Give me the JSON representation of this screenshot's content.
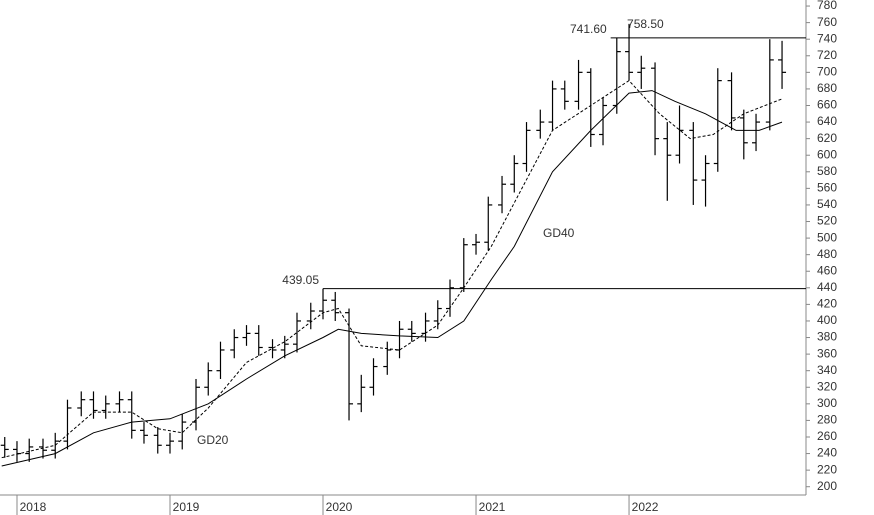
{
  "chart_data": {
    "type": "ohlc",
    "color": "#000000",
    "xlim": [
      2017.889,
      2023.15
    ],
    "xticks": [
      2018,
      2019,
      2020,
      2021,
      2022
    ],
    "ylim": [
      190,
      785
    ],
    "yticks": [
      200,
      220,
      240,
      260,
      280,
      300,
      320,
      340,
      360,
      380,
      400,
      420,
      440,
      460,
      480,
      500,
      520,
      540,
      560,
      580,
      600,
      620,
      640,
      660,
      680,
      700,
      720,
      740,
      760,
      780
    ],
    "x": [
      2017.92,
      2018.0,
      2018.08,
      2018.17,
      2018.25,
      2018.33,
      2018.42,
      2018.5,
      2018.58,
      2018.67,
      2018.75,
      2018.83,
      2018.92,
      2019.0,
      2019.08,
      2019.17,
      2019.25,
      2019.33,
      2019.42,
      2019.5,
      2019.58,
      2019.67,
      2019.75,
      2019.83,
      2019.92,
      2020.0,
      2020.08,
      2020.17,
      2020.25,
      2020.33,
      2020.42,
      2020.5,
      2020.58,
      2020.67,
      2020.75,
      2020.83,
      2020.92,
      2021.0,
      2021.08,
      2021.17,
      2021.25,
      2021.33,
      2021.42,
      2021.5,
      2021.58,
      2021.67,
      2021.75,
      2021.83,
      2021.92,
      2022.0,
      2022.08,
      2022.17,
      2022.25,
      2022.33,
      2022.42,
      2022.5,
      2022.58,
      2022.67,
      2022.75,
      2022.83,
      2022.92,
      2023.0
    ],
    "open": [
      250,
      245,
      240,
      248,
      244,
      255,
      295,
      305,
      292,
      300,
      305,
      268,
      262,
      250,
      255,
      278,
      320,
      340,
      365,
      380,
      385,
      368,
      365,
      372,
      400,
      412,
      425,
      410,
      300,
      320,
      345,
      365,
      390,
      385,
      400,
      415,
      440,
      492,
      495,
      540,
      565,
      590,
      630,
      640,
      680,
      665,
      700,
      625,
      660,
      725,
      700,
      705,
      620,
      600,
      630,
      570,
      590,
      690,
      645,
      615,
      640,
      715
    ],
    "high": [
      260,
      255,
      258,
      258,
      265,
      305,
      315,
      315,
      310,
      315,
      315,
      278,
      272,
      265,
      288,
      330,
      350,
      375,
      390,
      395,
      395,
      378,
      382,
      410,
      422,
      439.05,
      435,
      415,
      335,
      355,
      375,
      400,
      400,
      410,
      425,
      450,
      500,
      505,
      550,
      575,
      600,
      640,
      655,
      690,
      690,
      715,
      705,
      670,
      741.6,
      758.5,
      720,
      712,
      640,
      660,
      640,
      600,
      705,
      700,
      655,
      650,
      740,
      738
    ],
    "low": [
      235,
      230,
      230,
      234,
      234,
      245,
      285,
      282,
      282,
      290,
      258,
      252,
      240,
      240,
      245,
      268,
      310,
      330,
      355,
      370,
      358,
      355,
      355,
      362,
      390,
      402,
      400,
      280,
      290,
      310,
      335,
      355,
      375,
      375,
      390,
      405,
      435,
      480,
      485,
      530,
      555,
      580,
      620,
      630,
      655,
      655,
      610,
      612,
      650,
      690,
      680,
      600,
      545,
      590,
      540,
      538,
      580,
      630,
      595,
      605,
      630,
      680
    ],
    "close": [
      245,
      240,
      248,
      244,
      255,
      295,
      305,
      292,
      300,
      305,
      268,
      262,
      250,
      255,
      278,
      320,
      340,
      365,
      380,
      385,
      368,
      365,
      372,
      400,
      412,
      425,
      410,
      300,
      320,
      345,
      365,
      390,
      385,
      400,
      415,
      440,
      492,
      495,
      540,
      565,
      590,
      630,
      640,
      680,
      665,
      700,
      625,
      660,
      725,
      700,
      705,
      620,
      600,
      630,
      570,
      590,
      690,
      645,
      615,
      640,
      715,
      700
    ],
    "overlays": [
      {
        "name": "GD20",
        "color": "#000000",
        "dashed": true,
        "x": [
          2017.9,
          2018.25,
          2018.5,
          2018.75,
          2018.92,
          2019.08,
          2019.25,
          2019.5,
          2019.75,
          2020.0,
          2020.1,
          2020.25,
          2020.5,
          2020.75,
          2020.92,
          2021.1,
          2021.3,
          2021.5,
          2021.75,
          2022.0,
          2022.2,
          2022.4,
          2022.55,
          2022.75,
          2023.0
        ],
        "values": [
          235,
          250,
          290,
          290,
          270,
          265,
          295,
          350,
          375,
          410,
          415,
          370,
          365,
          395,
          440,
          490,
          560,
          630,
          660,
          690,
          650,
          620,
          625,
          650,
          668
        ]
      },
      {
        "name": "GD40",
        "color": "#000000",
        "dashed": false,
        "x": [
          2017.9,
          2018.25,
          2018.5,
          2018.75,
          2019.0,
          2019.25,
          2019.5,
          2019.75,
          2020.0,
          2020.1,
          2020.25,
          2020.5,
          2020.75,
          2020.92,
          2021.1,
          2021.25,
          2021.5,
          2021.75,
          2022.0,
          2022.15,
          2022.3,
          2022.5,
          2022.7,
          2022.85,
          2023.0
        ],
        "values": [
          225,
          240,
          265,
          278,
          282,
          300,
          330,
          358,
          380,
          390,
          385,
          382,
          380,
          400,
          450,
          490,
          580,
          630,
          675,
          678,
          665,
          650,
          630,
          630,
          640
        ]
      }
    ],
    "levels": [
      {
        "value": 439.05,
        "label": "439.05",
        "x": 2020.0
      },
      {
        "value": 741.6,
        "label": "741.60",
        "x": 2021.88
      }
    ],
    "peak": {
      "value": 758.5,
      "label": "758.50",
      "x": 2022.0
    }
  }
}
